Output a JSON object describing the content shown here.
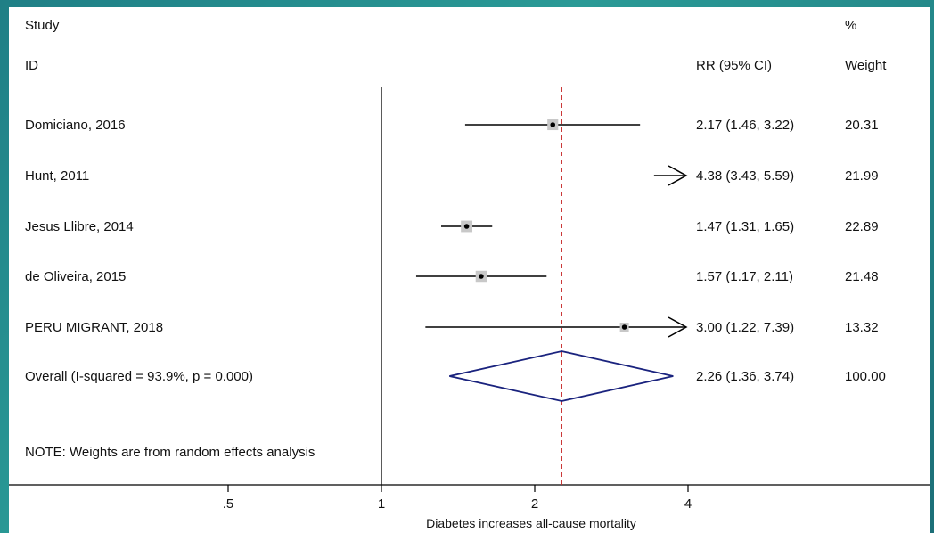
{
  "header": {
    "study": "Study",
    "id": "ID",
    "rr": "RR (95% CI)",
    "pct": "%",
    "weight": "Weight"
  },
  "note": "NOTE: Weights are from random effects analysis",
  "colors": {
    "line": "#000000",
    "box": "#c8c8c8",
    "diamond": "#1a237e",
    "reference_dashed": "#c62828"
  },
  "chart_data": {
    "type": "forest",
    "scale": "log",
    "x_ticks": [
      0.5,
      1,
      2,
      4
    ],
    "x_tick_labels": [
      ".5",
      "1",
      "2",
      "4"
    ],
    "xlabel": "Diabetes increases all-cause mortality",
    "null_line": 1,
    "pooled_line": 2.26,
    "studies": [
      {
        "id": "Domiciano, 2016",
        "rr": 2.17,
        "lo": 1.46,
        "hi": 3.22,
        "rr_text": "2.17 (1.46, 3.22)",
        "weight": 20.31,
        "weight_text": "20.31"
      },
      {
        "id": "Hunt, 2011",
        "rr": 4.38,
        "lo": 3.43,
        "hi": 5.59,
        "rr_text": "4.38 (3.43, 5.59)",
        "weight": 21.99,
        "weight_text": "21.99"
      },
      {
        "id": "Jesus Llibre, 2014",
        "rr": 1.47,
        "lo": 1.31,
        "hi": 1.65,
        "rr_text": "1.47 (1.31, 1.65)",
        "weight": 22.89,
        "weight_text": "22.89"
      },
      {
        "id": "de Oliveira, 2015",
        "rr": 1.57,
        "lo": 1.17,
        "hi": 2.11,
        "rr_text": "1.57 (1.17, 2.11)",
        "weight": 21.48,
        "weight_text": "21.48"
      },
      {
        "id": "PERU MIGRANT, 2018",
        "rr": 3.0,
        "lo": 1.22,
        "hi": 7.39,
        "rr_text": "3.00 (1.22, 7.39)",
        "weight": 13.32,
        "weight_text": "13.32"
      }
    ],
    "overall": {
      "label": "Overall  (I-squared = 93.9%, p = 0.000)",
      "rr": 2.26,
      "lo": 1.36,
      "hi": 3.74,
      "rr_text": "2.26 (1.36, 3.74)",
      "weight_text": "100.00"
    }
  }
}
